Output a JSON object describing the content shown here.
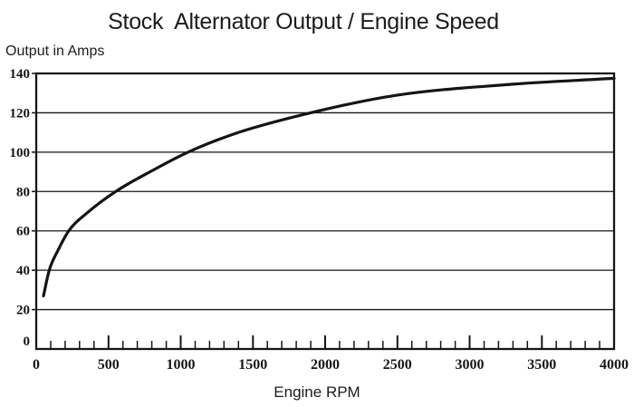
{
  "chart_data": {
    "type": "line",
    "title": "Stock  Alternator Output / Engine Speed",
    "ylabel": "Output in Amps",
    "xlabel": "Engine RPM",
    "xlim": [
      0,
      4000
    ],
    "ylim": [
      0,
      140
    ],
    "y_ticks": [
      0,
      20,
      40,
      60,
      80,
      100,
      120,
      140
    ],
    "x_ticks_major": [
      0,
      500,
      1000,
      1500,
      2000,
      2500,
      3000,
      3500,
      4000
    ],
    "x_minor_step": 100,
    "grid": "horizontal-only",
    "legend_position": "none",
    "background_color": "#ffffff",
    "axis_color": "#161616",
    "line_color": "#141414",
    "series": [
      {
        "name": "stock-alternator-output",
        "points": [
          [
            50,
            27
          ],
          [
            90,
            40
          ],
          [
            150,
            50
          ],
          [
            225,
            60
          ],
          [
            350,
            69
          ],
          [
            550,
            80
          ],
          [
            800,
            90.5
          ],
          [
            1050,
            100
          ],
          [
            1400,
            110
          ],
          [
            1900,
            120
          ],
          [
            2500,
            129
          ],
          [
            3300,
            134.5
          ],
          [
            4000,
            137.5
          ]
        ]
      }
    ]
  }
}
